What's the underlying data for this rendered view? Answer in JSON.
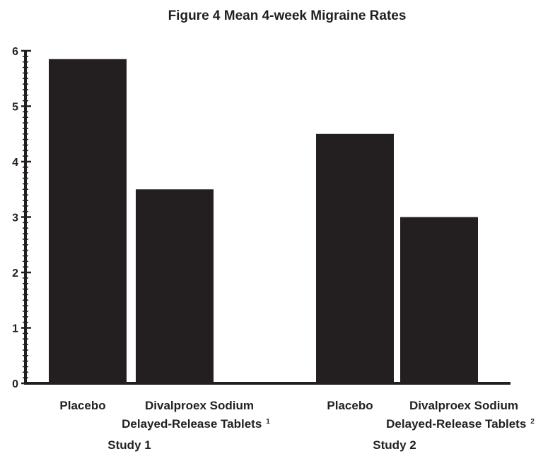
{
  "chart_data": {
    "type": "bar",
    "title": "Figure 4 Mean 4-week Migraine Rates",
    "xlabel": "",
    "ylabel": "",
    "ylim": [
      0,
      6
    ],
    "yticks": [
      "0",
      "1",
      "2",
      "3",
      "4",
      "5",
      "6"
    ],
    "groups": [
      {
        "label": "Study 1",
        "bars": [
          {
            "label_lines": [
              "Placebo"
            ],
            "superscript": "",
            "value": 5.85
          },
          {
            "label_lines": [
              "Divalproex Sodium",
              "Delayed-Release Tablets"
            ],
            "superscript": "1",
            "value": 3.5
          }
        ]
      },
      {
        "label": "Study 2",
        "bars": [
          {
            "label_lines": [
              "Placebo"
            ],
            "superscript": "",
            "value": 4.5
          },
          {
            "label_lines": [
              "Divalproex Sodium",
              "Delayed-Release Tablets"
            ],
            "superscript": "2",
            "value": 3.0
          }
        ]
      }
    ],
    "bar_color": "#231f20",
    "grid": false,
    "legend": "none"
  }
}
